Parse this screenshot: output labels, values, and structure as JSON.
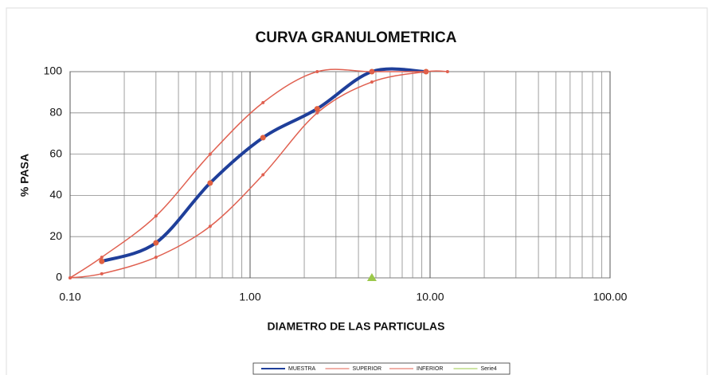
{
  "chart_data": {
    "type": "line",
    "title": "CURVA GRANULOMETRICA",
    "x_label": "DIAMETRO DE LAS PARTICULAS",
    "y_label": "% PASA",
    "xscale": "log",
    "xlim": [
      0.1,
      100
    ],
    "ylim": [
      0,
      100
    ],
    "xticks": [
      {
        "value": 0.1,
        "label": "0.10"
      },
      {
        "value": 1,
        "label": "1.00"
      },
      {
        "value": 10,
        "label": "10.00"
      },
      {
        "value": 100,
        "label": "100.00"
      }
    ],
    "yticks": [
      0,
      20,
      40,
      60,
      80,
      100
    ],
    "grid": true,
    "minor_grid": true,
    "legend": "bottom",
    "series": [
      {
        "name": "MUESTRA",
        "color": "#1f3f9a",
        "marker_color": "#e06040",
        "smooth": true,
        "x": [
          0.15,
          0.3,
          0.6,
          1.18,
          2.36,
          4.75,
          9.5
        ],
        "values": [
          8,
          17,
          46,
          68,
          82,
          100,
          100
        ]
      },
      {
        "name": "SUPERIOR",
        "color": "#e06050",
        "smooth": true,
        "x": [
          0.1,
          0.15,
          0.3,
          0.6,
          1.18,
          2.36,
          4.75,
          9.5
        ],
        "values": [
          0,
          10,
          30,
          60,
          85,
          100,
          100,
          100
        ]
      },
      {
        "name": "INFERIOR",
        "color": "#e06050",
        "smooth": true,
        "x": [
          0.1,
          0.15,
          0.3,
          0.6,
          1.18,
          2.36,
          4.75,
          9.5,
          12.5
        ],
        "values": [
          0,
          2,
          10,
          25,
          50,
          80,
          95,
          100,
          100
        ]
      },
      {
        "name": "Serie4",
        "color": "#9bc84a",
        "marker": "triangle",
        "x": [
          4.75
        ],
        "values": [
          0
        ]
      }
    ]
  }
}
